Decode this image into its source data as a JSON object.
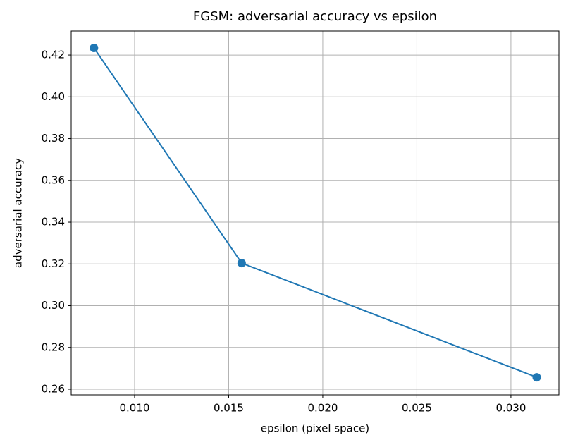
{
  "chart_data": {
    "type": "line",
    "title": "FGSM: adversarial accuracy vs epsilon",
    "x_label": "epsilon (pixel space)",
    "y_label": "adversarial accuracy",
    "x": [
      0.00784,
      0.01569,
      0.03137
    ],
    "values": [
      0.4234,
      0.3204,
      0.2657
    ],
    "color": "#1f77b4",
    "marker": "circle",
    "grid": true,
    "xlim": [
      0.00663,
      0.03255
    ],
    "xticks": [
      {
        "value": 0.01,
        "label": "0.010"
      },
      0.015,
      {
        "value": 0.02,
        "label": "0.020"
      },
      0.025,
      {
        "value": 0.03,
        "label": "0.030"
      }
    ],
    "ylim": [
      0.2573,
      0.4315
    ],
    "yticks": [
      0.26,
      0.28,
      {
        "value": 0.3,
        "label": "0.30"
      },
      0.32,
      0.34,
      0.36,
      0.38,
      {
        "value": 0.4,
        "label": "0.40"
      },
      0.42
    ]
  }
}
